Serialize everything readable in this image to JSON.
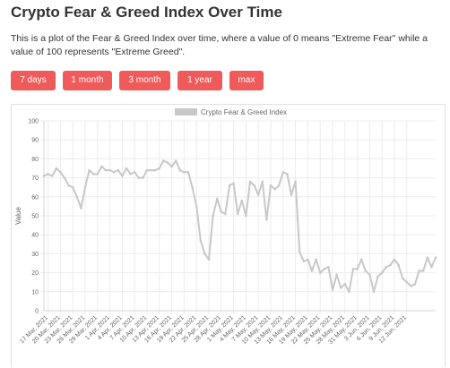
{
  "page": {
    "title": "Crypto Fear & Greed Index Over Time",
    "description": "This is a plot of the Fear & Greed Index over time, where a value of 0 means \"Extreme Fear\" while a value of 100 represents \"Extreme Greed\"."
  },
  "buttons": [
    {
      "label": "7 days"
    },
    {
      "label": "1 month"
    },
    {
      "label": "3 month"
    },
    {
      "label": "1 year"
    },
    {
      "label": "max"
    }
  ],
  "colors": {
    "button_bg": "#ef5a5a",
    "series_line": "#c8c8c8",
    "grid": "#ececec"
  },
  "chart_data": {
    "type": "line",
    "ylabel": "Value",
    "xlabel": "",
    "ylim": [
      0,
      100
    ],
    "y_ticks": [
      0,
      10,
      20,
      30,
      40,
      50,
      60,
      70,
      80,
      90,
      100
    ],
    "grid": true,
    "legend_position": "top",
    "x_tick_labels": [
      "17 Mar, 2021",
      "20 Mar, 2021",
      "23 Mar, 2021",
      "26 Mar, 2021",
      "29 Mar, 2021",
      "1 Apr, 2021",
      "4 Apr, 2021",
      "7 Apr, 2021",
      "10 Apr, 2021",
      "13 Apr, 2021",
      "16 Apr, 2021",
      "19 Apr, 2021",
      "22 Apr, 2021",
      "25 Apr, 2021",
      "28 Apr, 2021",
      "1 May, 2021",
      "4 May, 2021",
      "7 May, 2021",
      "10 May, 2021",
      "13 May, 2021",
      "16 May, 2021",
      "19 May, 2021",
      "22 May, 2021",
      "25 May, 2021",
      "28 May, 2021",
      "31 May, 2021",
      "3 Jun, 2021",
      "6 Jun, 2021",
      "9 Jun, 2021",
      "12 Jun, 2021"
    ],
    "series": [
      {
        "name": "Crypto Fear & Greed Index",
        "x_start": "16 Mar, 2021",
        "x_end": "14 Jun, 2021",
        "values": [
          71,
          72,
          71,
          75,
          73,
          70,
          66,
          65,
          60,
          54,
          65,
          74,
          72,
          72,
          76,
          74,
          74,
          73,
          74,
          71,
          75,
          72,
          73,
          70,
          70,
          74,
          74,
          74,
          75,
          79,
          78,
          76,
          79,
          74,
          73,
          73,
          65,
          55,
          37,
          30,
          27,
          50,
          59,
          52,
          51,
          66,
          67,
          51,
          58,
          50,
          68,
          66,
          61,
          68,
          48,
          66,
          64,
          66,
          73,
          72,
          61,
          68,
          31,
          26,
          27,
          21,
          27,
          20,
          22,
          23,
          11,
          19,
          12,
          14,
          10,
          22,
          22,
          27,
          21,
          19,
          10,
          18,
          20,
          23,
          24,
          27,
          24,
          17,
          15,
          13,
          14,
          21,
          21,
          28,
          23,
          28
        ]
      }
    ]
  }
}
